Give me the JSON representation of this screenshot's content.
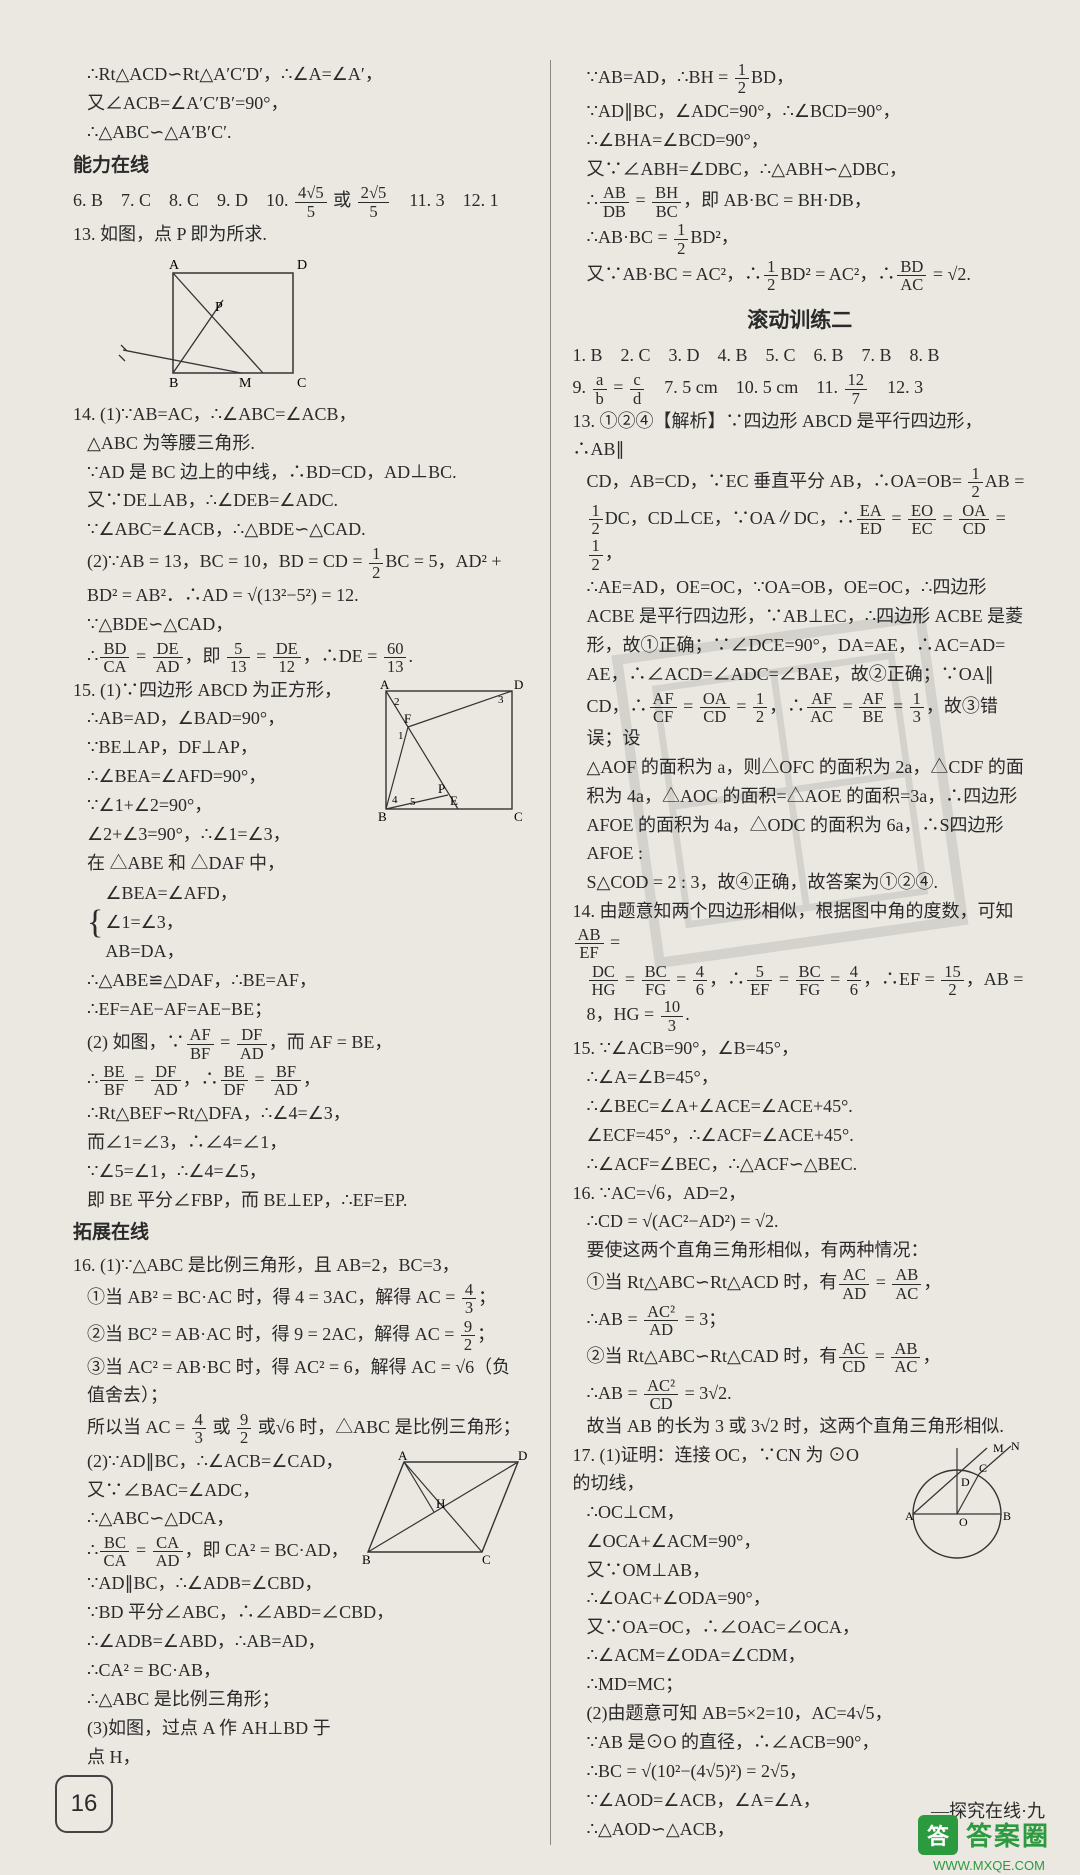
{
  "left": {
    "top_lines": [
      "∴Rt△ACD∽Rt△A′C′D′，∴∠A=∠A′，",
      "又∠ACB=∠A′C′B′=90°，",
      "∴△ABC∽△A′B′C′."
    ],
    "ability_heading": "能力在线",
    "answers_row": "6. B　7. C　8. C　9. D　10. <F>4√5|5</F> 或 <F>2√5|5</F>　11. 3　12. 1",
    "q13": "13. 如图，点 P 即为所求.",
    "fig13": {
      "labels": {
        "A": "A",
        "B": "B",
        "C": "C",
        "D": "D",
        "M": "M",
        "P": "P"
      }
    },
    "q14": {
      "p1": [
        "14. (1)∵AB=AC，∴∠ABC=∠ACB，",
        "△ABC 为等腰三角形.",
        "∵AD 是 BC 边上的中线，∴BD=CD，AD⊥BC.",
        "又∵DE⊥AB，∴∠DEB=∠ADC.",
        "∵∠ABC=∠ACB，∴△BDE∽△CAD."
      ],
      "p2": [
        "(2)∵AB = 13，BC = 10，BD = CD = <F>1|2</F>BC = 5，AD² +",
        "BD² = AB²．∴AD = √(13²−5²) = 12.",
        "∵△BDE∽△CAD，",
        "∴<F>BD|CA</F> = <F>DE|AD</F>，即 <F>5|13</F> = <F>DE|12</F>，∴DE = <F>60|13</F>."
      ]
    },
    "q15": {
      "p1": [
        "15. (1)∵四边形 ABCD 为正方形，",
        "∴AB=AD，∠BAD=90°，",
        "∵BE⊥AP，DF⊥AP，",
        "∴∠BEA=∠AFD=90°，",
        "∵∠1+∠2=90°，",
        "∠2+∠3=90°，∴∠1=∠3，",
        "在 △ABE 和 △DAF 中，"
      ],
      "brace": [
        "∠BEA=∠AFD，",
        "∠1=∠3，",
        "AB=DA，"
      ],
      "p1b": [
        "∴△ABE≌△DAF，∴BE=AF，",
        "∴EF=AE−AF=AE−BE；"
      ],
      "fig": {
        "A": "A",
        "B": "B",
        "C": "C",
        "D": "D",
        "E": "E",
        "F": "F",
        "P": "P"
      },
      "p2": [
        "(2) 如图，∵<F>AF|BF</F> = <F>DF|AD</F>，而 AF = BE，",
        "∴<F>BE|BF</F> = <F>DF|AD</F>，∴<F>BE|DF</F> = <F>BF|AD</F>，",
        "∴Rt△BEF∽Rt△DFA，∴∠4=∠3，",
        "而∠1=∠3，∴∠4=∠1，",
        "∵∠5=∠1，∴∠4=∠5，",
        "即 BE 平分∠FBP，而 BE⊥EP，∴EF=EP."
      ]
    },
    "ext_heading": "拓展在线",
    "q16": {
      "intro": "16. (1)∵△ABC 是比例三角形，且 AB=2，BC=3，",
      "cases": [
        "①当 AB² = BC·AC 时，得 4 = 3AC，解得 AC = <F>4|3</F>；",
        "②当 BC² = AB·AC 时，得 9 = 2AC，解得 AC = <F>9|2</F>；",
        "③当 AC² = AB·BC 时，得 AC² = 6，解得 AC = √6（负值舍去）；"
      ],
      "conclude": "所以当 AC = <F>4|3</F> 或 <F>9|2</F> 或√6 时，△ABC 是比例三角形；",
      "p2": [
        "(2)∵AD∥BC，∴∠ACB=∠CAD，",
        "又∵∠BAC=∠ADC，∴△ABC∽△DCA，",
        "∴<F>BC|CA</F> = <F>CA|AD</F>，即 CA² = BC·AD，",
        "∵AD∥BC，∴∠ADB=∠CBD，",
        "∵BD 平分∠ABC，∴∠ABD=∠CBD，",
        "∴∠ADB=∠ABD，∴AB=AD，",
        "∴CA² = BC·AB，",
        "∴△ABC 是比例三角形；",
        "(3)如图，过点 A 作 AH⊥BD 于",
        "点 H，"
      ],
      "fig": {
        "A": "A",
        "B": "B",
        "C": "C",
        "D": "D",
        "H": "H"
      }
    }
  },
  "right": {
    "cont": [
      "∵AB=AD，∴BH = <F>1|2</F>BD，",
      "∵AD∥BC，∠ADC=90°，∴∠BCD=90°，",
      "∴∠BHA=∠BCD=90°，",
      "又∵∠ABH=∠DBC，∴△ABH∽△DBC，",
      "∴<F>AB|DB</F> = <F>BH|BC</F>，即 AB·BC = BH·DB，",
      "∴AB·BC = <F>1|2</F>BD²，",
      "又∵AB·BC = AC²，∴<F>1|2</F>BD² = AC²，∴<F>BD|AC</F> = √2."
    ],
    "roll_heading": "滚动训练二",
    "answers1": "1. B　2. C　3. D　4. B　5. C　6. B　7. B　8. B",
    "answers2": "9. <F>a|b</F> = <F>c|d</F>　7. 5 cm　10. 5 cm　11. <F>12|7</F>　12. 3",
    "q13": [
      "13. ①②④【解析】∵四边形 ABCD 是平行四边形，∴AB∥",
      "CD，AB=CD，∵EC 垂直平分 AB，∴OA=OB= <F>1|2</F>AB =",
      "<F>1|2</F>DC，CD⊥CE，∵OA∥DC，∴<F>EA|ED</F> = <F>EO|EC</F> = <F>OA|CD</F> = <F>1|2</F>，",
      "∴AE=AD，OE=OC，∵OA=OB，OE=OC，∴四边形",
      "ACBE 是平行四边形，∵AB⊥EC，∴四边形 ACBE 是菱",
      "形，故①正确；∵∠DCE=90°，DA=AE，∴AC=AD=",
      "AE，∴∠ACD=∠ADC=∠BAE，故②正确；∵OA∥",
      "CD，∴<F>AF|CF</F> = <F>OA|CD</F> = <F>1|2</F>，∴<F>AF|AC</F> = <F>AF|BE</F> = <F>1|3</F>，故③错误；设",
      "△AOF 的面积为 a，则△OFC 的面积为 2a，△CDF 的面",
      "积为 4a，△AOC 的面积=△AOE 的面积=3a，∴四边形",
      "AFOE 的面积为 4a，△ODC 的面积为 6a，∴S四边形AFOE :",
      "S△COD = 2 : 3，故④正确，故答案为①②④."
    ],
    "q14": [
      "14. 由题意知两个四边形相似，根据图中角的度数，可知 <F>AB|EF</F> =",
      "<F>DC|HG</F> = <F>BC|FG</F> = <F>4|6</F>，∴<F>5|EF</F> = <F>BC|FG</F> = <F>4|6</F>，∴EF = <F>15|2</F>，AB = 8，HG = <F>10|3</F>."
    ],
    "q15": [
      "15. ∵∠ACB=90°，∠B=45°，",
      "∴∠A=∠B=45°，",
      "∴∠BEC=∠A+∠ACE=∠ACE+45°.",
      "∠ECF=45°，∴∠ACF=∠ACE+45°.",
      "∴∠ACF=∠BEC，∴△ACF∽△BEC."
    ],
    "q16": [
      "16. ∵AC=√6，AD=2，",
      "∴CD = √(AC²−AD²) = √2.",
      "要使这两个直角三角形相似，有两种情况：",
      "①当 Rt△ABC∽Rt△ACD 时，有<F>AC|AD</F> = <F>AB|AC</F>，",
      "∴AB = <F>AC²|AD</F> = 3；",
      "②当 Rt△ABC∽Rt△CAD 时，有<F>AC|CD</F> = <F>AB|AC</F>，",
      "∴AB = <F>AC²|CD</F> = 3√2.",
      "故当 AB 的长为 3 或 3√2 时，这两个直角三角形相似."
    ],
    "q17": {
      "lines": [
        "17. (1)证明：连接 OC，∵CN 为 ⊙O 的切线，",
        "∴OC⊥CM，",
        "∠OCA+∠ACM=90°，",
        "又∵OM⊥AB，∴∠OAC+∠ODA=90°，",
        "又∵OA=OC，∴∠OAC=∠OCA，",
        "∴∠ACM=∠ODA=∠CDM，",
        "∴MD=MC；",
        "(2)由题意可知 AB=5×2=10，AC=4√5，",
        "∵AB 是⊙O 的直径，∴∠ACB=90°，",
        "∴BC = √(10²−(4√5)²) = 2√5，",
        "∵∠AOD=∠ACB，∠A=∠A，",
        "∴△AOD∽△ACB，"
      ],
      "fig": {
        "A": "A",
        "B": "B",
        "C": "C",
        "D": "D",
        "M": "M",
        "N": "N",
        "O": "O"
      }
    }
  },
  "page_number": "16",
  "footer": "—探究在线·九",
  "watermark": {
    "box": "答",
    "text": "答案圈",
    "url": "WWW.MXQE.COM"
  }
}
